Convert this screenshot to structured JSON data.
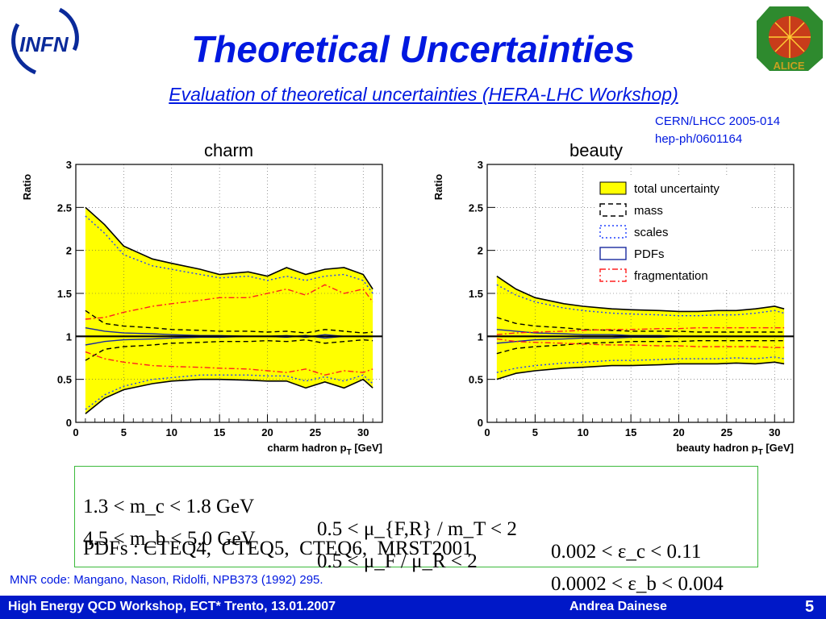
{
  "slide": {
    "title": "Theoretical Uncertainties",
    "subtitle": "Evaluation of theoretical uncertainties (HERA-LHC Workshop)",
    "refs": [
      "CERN/LHCC 2005-014",
      "hep-ph/0601164"
    ],
    "logos": {
      "left": "INFN",
      "right": "ALICE"
    },
    "colors": {
      "title": "#0018e0",
      "band": "#ffff00",
      "footer": "#0018c8"
    }
  },
  "chart_data": [
    {
      "type": "area",
      "title": "charm",
      "xlabel": "charm hadron p",
      "xlabel_sub": "T",
      "xlabel_unit": " [GeV]",
      "ylabel": "Ratio",
      "xlim": [
        0,
        32
      ],
      "ylim": [
        0,
        3
      ],
      "xticks": [
        0,
        5,
        10,
        15,
        20,
        25,
        30
      ],
      "yticks": [
        "0",
        "0.5",
        "1",
        "1.5",
        "2",
        "2.5",
        "3"
      ],
      "x": [
        1,
        3,
        5,
        8,
        10,
        13,
        15,
        18,
        20,
        22,
        24,
        26,
        28,
        30,
        31
      ],
      "series": [
        {
          "name": "total uncertainty upper",
          "values": [
            2.5,
            2.3,
            2.05,
            1.9,
            1.85,
            1.78,
            1.72,
            1.75,
            1.7,
            1.8,
            1.72,
            1.78,
            1.8,
            1.72,
            1.55
          ]
        },
        {
          "name": "total uncertainty lower",
          "values": [
            0.1,
            0.28,
            0.38,
            0.45,
            0.48,
            0.5,
            0.5,
            0.49,
            0.48,
            0.48,
            0.4,
            0.47,
            0.4,
            0.5,
            0.4
          ]
        },
        {
          "name": "mass upper",
          "values": [
            1.3,
            1.15,
            1.12,
            1.1,
            1.08,
            1.07,
            1.06,
            1.06,
            1.05,
            1.06,
            1.04,
            1.08,
            1.06,
            1.04,
            1.05
          ]
        },
        {
          "name": "mass lower",
          "values": [
            0.72,
            0.85,
            0.88,
            0.9,
            0.92,
            0.93,
            0.94,
            0.94,
            0.95,
            0.94,
            0.96,
            0.92,
            0.94,
            0.96,
            0.95
          ]
        },
        {
          "name": "scales upper",
          "values": [
            2.4,
            2.2,
            1.95,
            1.82,
            1.78,
            1.72,
            1.68,
            1.7,
            1.65,
            1.7,
            1.65,
            1.7,
            1.72,
            1.65,
            1.5
          ]
        },
        {
          "name": "scales lower",
          "values": [
            0.15,
            0.32,
            0.42,
            0.5,
            0.52,
            0.55,
            0.55,
            0.55,
            0.54,
            0.54,
            0.48,
            0.53,
            0.48,
            0.55,
            0.45
          ]
        },
        {
          "name": "PDFs upper",
          "values": [
            1.1,
            1.06,
            1.04,
            1.03,
            1.02,
            1.01,
            1.01,
            1.0,
            1.0,
            1.01,
            0.99,
            1.02,
            1.0,
            1.0,
            1.0
          ]
        },
        {
          "name": "PDFs lower",
          "values": [
            0.9,
            0.94,
            0.96,
            0.97,
            0.98,
            0.99,
            0.99,
            1.0,
            1.0,
            0.99,
            1.01,
            0.98,
            1.0,
            1.0,
            1.0
          ]
        },
        {
          "name": "fragmentation upper",
          "values": [
            1.2,
            1.22,
            1.28,
            1.35,
            1.38,
            1.42,
            1.45,
            1.45,
            1.5,
            1.55,
            1.48,
            1.6,
            1.5,
            1.55,
            1.4
          ]
        },
        {
          "name": "fragmentation lower",
          "values": [
            0.82,
            0.74,
            0.7,
            0.66,
            0.65,
            0.64,
            0.63,
            0.62,
            0.6,
            0.58,
            0.62,
            0.55,
            0.6,
            0.58,
            0.62
          ]
        }
      ]
    },
    {
      "type": "area",
      "title": "beauty",
      "xlabel": "beauty hadron p",
      "xlabel_sub": "T",
      "xlabel_unit": " [GeV]",
      "ylabel": "Ratio",
      "xlim": [
        0,
        32
      ],
      "ylim": [
        0,
        3
      ],
      "xticks": [
        0,
        5,
        10,
        15,
        20,
        25,
        30
      ],
      "yticks": [
        "0",
        "0.5",
        "1",
        "1.5",
        "2",
        "2.5",
        "3"
      ],
      "legend": [
        "total uncertainty",
        "mass",
        "scales",
        "PDFs",
        "fragmentation"
      ],
      "legend_position": "top-right",
      "x": [
        1,
        3,
        5,
        8,
        10,
        13,
        15,
        18,
        20,
        22,
        24,
        26,
        28,
        30,
        31
      ],
      "series": [
        {
          "name": "total uncertainty upper",
          "values": [
            1.7,
            1.55,
            1.45,
            1.38,
            1.35,
            1.32,
            1.31,
            1.3,
            1.29,
            1.29,
            1.3,
            1.3,
            1.32,
            1.35,
            1.32
          ]
        },
        {
          "name": "total uncertainty lower",
          "values": [
            0.5,
            0.57,
            0.6,
            0.63,
            0.64,
            0.66,
            0.66,
            0.67,
            0.68,
            0.68,
            0.68,
            0.69,
            0.68,
            0.7,
            0.68
          ]
        },
        {
          "name": "mass upper",
          "values": [
            1.22,
            1.15,
            1.12,
            1.1,
            1.08,
            1.07,
            1.06,
            1.06,
            1.06,
            1.05,
            1.05,
            1.05,
            1.05,
            1.05,
            1.05
          ]
        },
        {
          "name": "mass lower",
          "values": [
            0.8,
            0.86,
            0.88,
            0.9,
            0.92,
            0.93,
            0.94,
            0.94,
            0.94,
            0.95,
            0.95,
            0.95,
            0.95,
            0.95,
            0.95
          ]
        },
        {
          "name": "scales upper",
          "values": [
            1.6,
            1.48,
            1.4,
            1.33,
            1.3,
            1.27,
            1.26,
            1.25,
            1.24,
            1.24,
            1.25,
            1.25,
            1.27,
            1.3,
            1.27
          ]
        },
        {
          "name": "scales lower",
          "values": [
            0.58,
            0.63,
            0.66,
            0.69,
            0.7,
            0.72,
            0.72,
            0.73,
            0.74,
            0.74,
            0.74,
            0.75,
            0.74,
            0.76,
            0.74
          ]
        },
        {
          "name": "PDFs upper",
          "values": [
            1.08,
            1.06,
            1.04,
            1.03,
            1.02,
            1.02,
            1.01,
            1.01,
            1.0,
            1.0,
            1.0,
            1.0,
            1.0,
            1.0,
            1.0
          ]
        },
        {
          "name": "PDFs lower",
          "values": [
            0.92,
            0.94,
            0.96,
            0.97,
            0.98,
            0.98,
            0.99,
            0.99,
            1.0,
            1.0,
            1.0,
            1.0,
            1.0,
            1.0,
            1.0
          ]
        },
        {
          "name": "fragmentation upper",
          "values": [
            1.02,
            1.04,
            1.05,
            1.06,
            1.07,
            1.08,
            1.08,
            1.09,
            1.09,
            1.1,
            1.1,
            1.1,
            1.1,
            1.1,
            1.1
          ]
        },
        {
          "name": "fragmentation lower",
          "values": [
            0.97,
            0.94,
            0.93,
            0.92,
            0.91,
            0.9,
            0.9,
            0.89,
            0.89,
            0.88,
            0.88,
            0.88,
            0.88,
            0.87,
            0.87
          ]
        }
      ]
    }
  ],
  "formulas": {
    "row1": [
      "1.3 < m_c < 1.8 GeV",
      "0.5 < μ_{F,R} / m_T < 2",
      "0.002 < ε_c < 0.11"
    ],
    "row2": [
      "4.5 < m_b < 5.0 GeV",
      "0.5 < μ_F / μ_R < 2",
      "0.0002 < ε_b < 0.004"
    ],
    "row3": "PDFs : CTEQ4,  CTEQ5,  CTEQ6,  MRST2001"
  },
  "note": "MNR code: Mangano, Nason, Ridolfi, NPB373 (1992) 295.",
  "footer": {
    "left": "High Energy QCD Workshop, ECT* Trento, 13.01.2007",
    "author": "Andrea Dainese",
    "page": "5"
  }
}
